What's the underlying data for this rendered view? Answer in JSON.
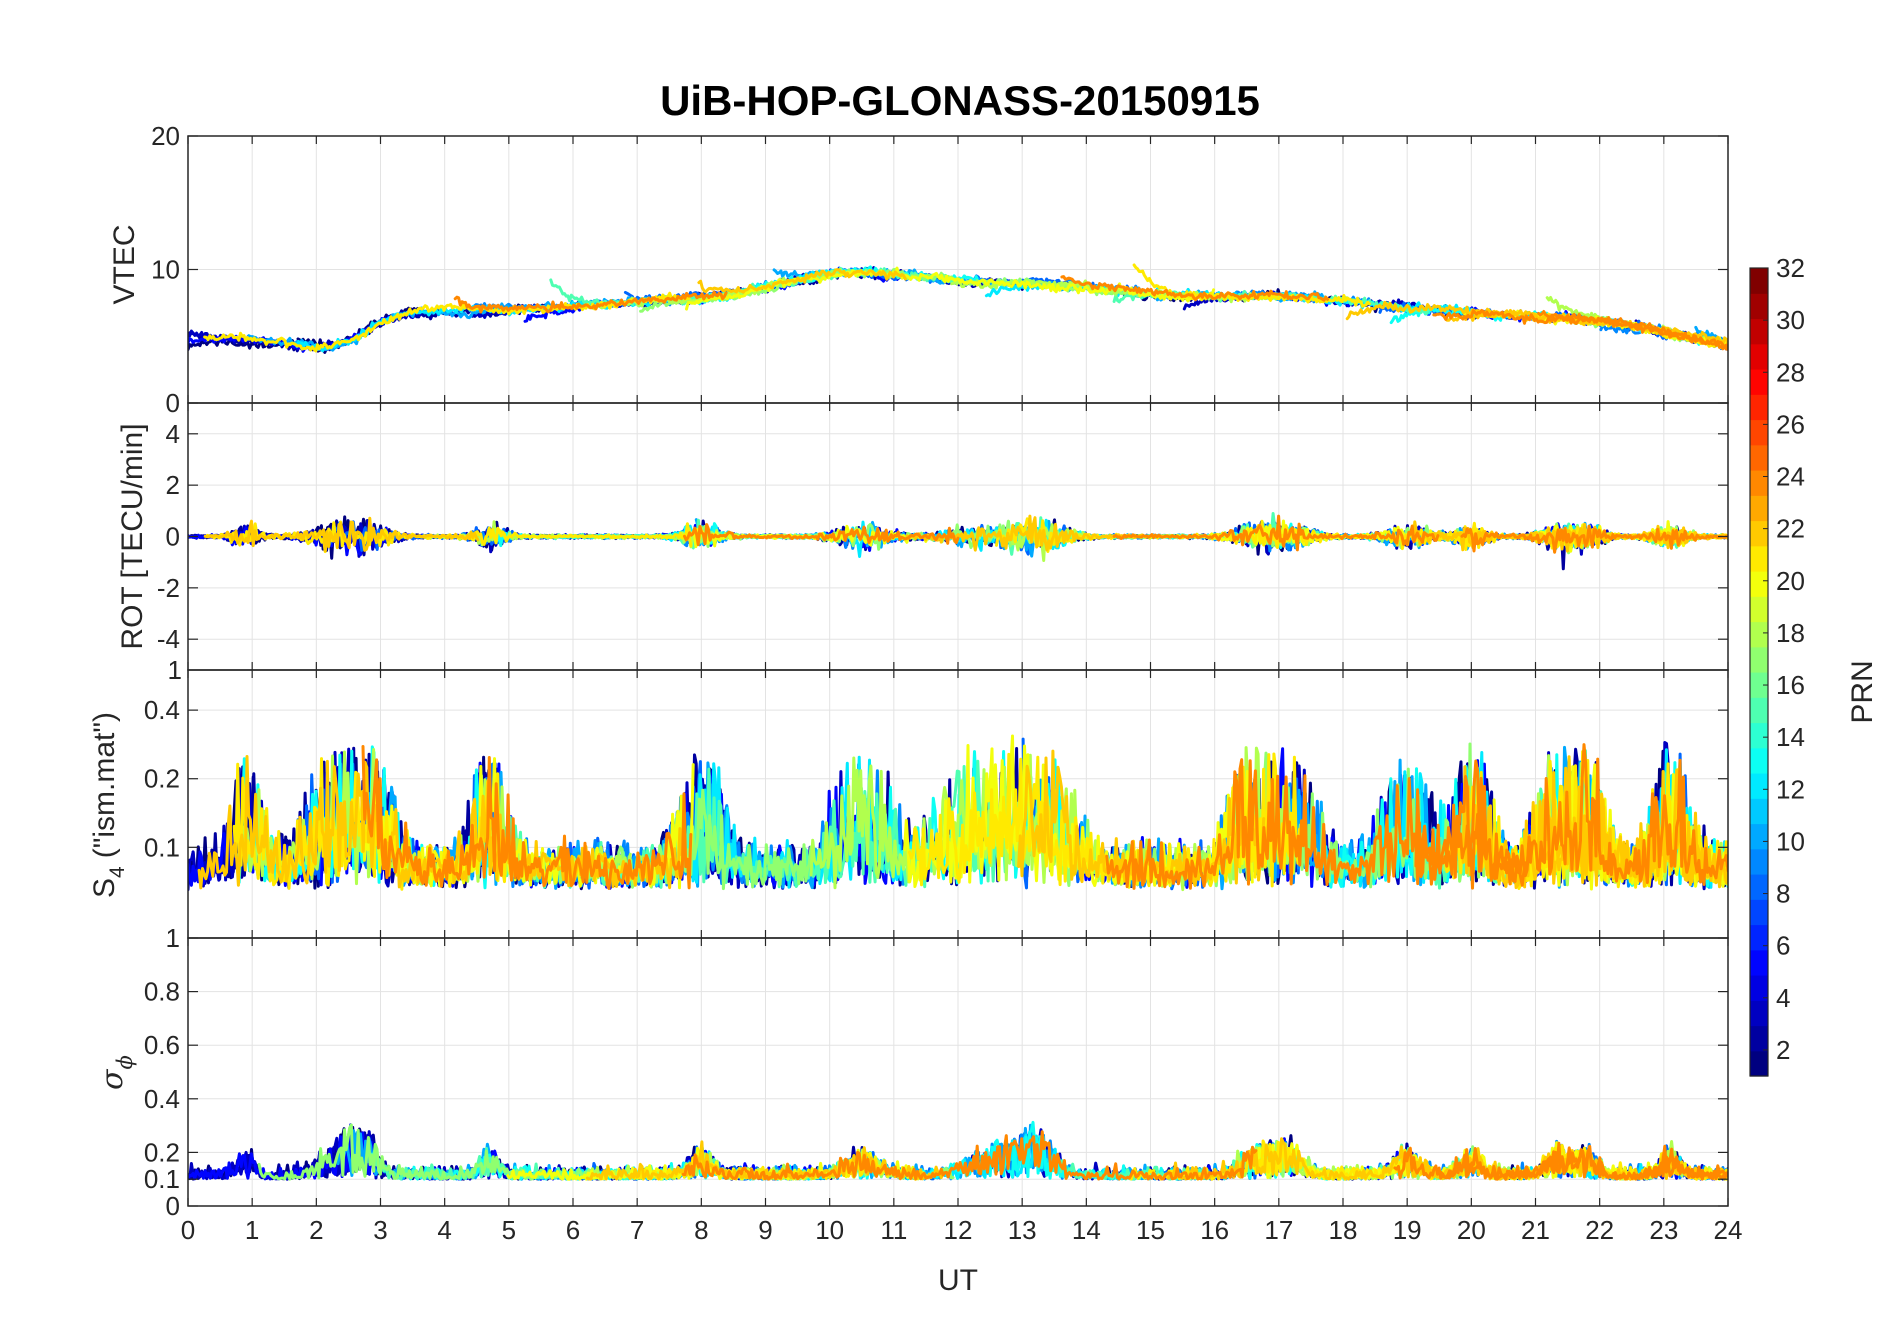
{
  "chart_data": [
    {
      "type": "line",
      "title": "UiB-HOP-GLONASS-20150915",
      "xlabel": "",
      "ylabel": "VTEC",
      "xlim": [
        0,
        24
      ],
      "ylim": [
        0,
        20
      ],
      "yticks": [
        "0",
        "10",
        "20"
      ],
      "yticks_values": [
        0,
        10,
        20
      ],
      "grid": true,
      "note": "many overlapping satellite traces colored by PRN",
      "typical_profile": {
        "x": [
          0,
          2,
          3,
          5,
          8,
          10,
          12,
          13,
          15,
          17,
          19,
          22,
          24
        ],
        "y": [
          5,
          4,
          7,
          7,
          8,
          10,
          9,
          9,
          8,
          8,
          7,
          6,
          4
        ]
      }
    },
    {
      "type": "line",
      "ylabel_text": "ROT [TECU/min]",
      "xlim": [
        0,
        24
      ],
      "ylim": [
        -5.2,
        5.2
      ],
      "yticks": [
        "-4",
        "-2",
        "0",
        "2",
        "4"
      ],
      "yticks_values": [
        -4,
        -2,
        0,
        2,
        4
      ],
      "grid": true
    },
    {
      "type": "line",
      "ylabel_text": "(\"ism.mat\")",
      "ylabel_symbol": "S",
      "ylabel_sub": "4",
      "xlim": [
        0,
        24
      ],
      "ylim": [
        0.04,
        0.6
      ],
      "yticks": [
        "0.1",
        "0.2",
        "0.4"
      ],
      "yticks_values": [
        0.1,
        0.2,
        0.4
      ],
      "yscale": "log",
      "top_tick": "1",
      "grid": true
    },
    {
      "type": "line",
      "ylabel_symbol": "σ",
      "ylabel_sub": "ϕ",
      "xlabel": "UT",
      "xlim": [
        0,
        24
      ],
      "ylim": [
        0,
        1
      ],
      "yticks": [
        "0",
        "0.1",
        "0.2",
        "0.4",
        "0.6",
        "0.8",
        "1"
      ],
      "yticks_values": [
        0,
        0.1,
        0.2,
        0.4,
        0.6,
        0.8,
        1
      ],
      "xticks": [
        "0",
        "1",
        "2",
        "3",
        "4",
        "5",
        "6",
        "7",
        "8",
        "9",
        "10",
        "11",
        "12",
        "13",
        "14",
        "15",
        "16",
        "17",
        "18",
        "19",
        "20",
        "21",
        "22",
        "23",
        "24"
      ],
      "grid": true
    }
  ],
  "colorbar": {
    "label": "PRN",
    "range": [
      1,
      32
    ],
    "colormap": "jet",
    "ticks": [
      "2",
      "4",
      "6",
      "8",
      "10",
      "12",
      "14",
      "16",
      "18",
      "20",
      "22",
      "24",
      "26",
      "28",
      "30",
      "32"
    ],
    "tick_values": [
      2,
      4,
      6,
      8,
      10,
      12,
      14,
      16,
      18,
      20,
      22,
      24,
      26,
      28,
      30,
      32
    ]
  },
  "series_prn": [
    1,
    2,
    3,
    5,
    8,
    9,
    10,
    12,
    13,
    15,
    17,
    18,
    20,
    21,
    22,
    24
  ]
}
